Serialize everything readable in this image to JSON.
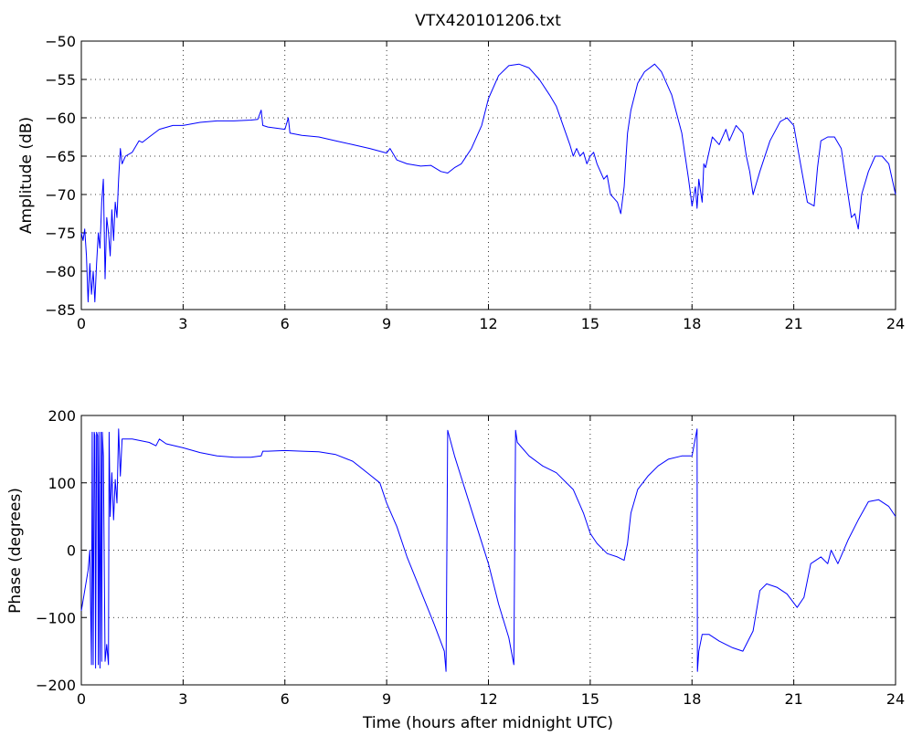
{
  "figure": {
    "title": "VTX420101206.txt",
    "colors": {
      "trace": "#0000ff",
      "axes": "#000000",
      "background": "#ffffff"
    }
  },
  "chart_data": [
    {
      "type": "line",
      "title": "VTX420101206.txt",
      "xlabel": "",
      "ylabel": "Amplitude (dB)",
      "xlim": [
        0,
        24
      ],
      "ylim": [
        -85,
        -50
      ],
      "xticks": [
        "0",
        "3",
        "6",
        "9",
        "12",
        "15",
        "18",
        "21",
        "24"
      ],
      "yticks": [
        "-50",
        "-55",
        "-60",
        "-65",
        "-70",
        "-75",
        "-80",
        "-85"
      ],
      "grid": true,
      "series": [
        {
          "x": [
            0,
            0.05,
            0.1,
            0.15,
            0.2,
            0.25,
            0.3,
            0.35,
            0.4,
            0.45,
            0.5,
            0.55,
            0.6,
            0.65,
            0.7,
            0.75,
            0.8,
            0.85,
            0.9,
            0.95,
            1.0,
            1.05,
            1.1,
            1.15,
            1.2,
            1.3,
            1.5,
            1.7,
            1.8,
            2.0,
            2.3,
            2.7,
            3.0,
            3.5,
            4.0,
            4.5,
            5.0,
            5.2,
            5.3,
            5.35,
            5.5,
            6.0,
            6.1,
            6.15,
            6.5,
            7.0,
            7.5,
            8.0,
            8.5,
            9.0,
            9.1,
            9.3,
            9.6,
            10.0,
            10.3,
            10.6,
            10.8,
            11.0,
            11.2,
            11.5,
            11.8,
            12.0,
            12.3,
            12.6,
            12.9,
            13.2,
            13.5,
            13.8,
            14.0,
            14.2,
            14.4,
            14.5,
            14.6,
            14.7,
            14.8,
            14.9,
            15.0,
            15.1,
            15.2,
            15.3,
            15.4,
            15.5,
            15.6,
            15.7,
            15.8,
            15.9,
            16.0,
            16.1,
            16.2,
            16.4,
            16.6,
            16.9,
            17.1,
            17.4,
            17.7,
            17.9,
            18.0,
            18.1,
            18.15,
            18.2,
            18.3,
            18.35,
            18.4,
            18.6,
            18.8,
            19.0,
            19.1,
            19.3,
            19.5,
            19.6,
            19.7,
            19.8,
            20.0,
            20.3,
            20.6,
            20.8,
            21.0,
            21.2,
            21.4,
            21.6,
            21.7,
            21.8,
            22.0,
            22.2,
            22.4,
            22.6,
            22.7,
            22.8,
            22.9,
            23.0,
            23.2,
            23.4,
            23.6,
            23.8,
            24.0
          ],
          "y": [
            -75,
            -76,
            -74.5,
            -78,
            -84,
            -79,
            -83,
            -80,
            -84,
            -79,
            -75,
            -77,
            -71,
            -68,
            -81,
            -73,
            -75,
            -78,
            -72,
            -76,
            -71,
            -73,
            -68,
            -64,
            -66,
            -65,
            -64.5,
            -63,
            -63.2,
            -62.5,
            -61.5,
            -61,
            -61,
            -60.6,
            -60.4,
            -60.4,
            -60.3,
            -60.2,
            -59,
            -61,
            -61.2,
            -61.5,
            -60,
            -62,
            -62.3,
            -62.5,
            -63,
            -63.5,
            -64,
            -64.6,
            -64,
            -65.5,
            -66,
            -66.3,
            -66.2,
            -67,
            -67.2,
            -66.5,
            -66,
            -64,
            -61,
            -57.5,
            -54.5,
            -53.2,
            -53,
            -53.5,
            -55,
            -57,
            -58.5,
            -61,
            -63.5,
            -65,
            -64,
            -65,
            -64.5,
            -66,
            -65,
            -64.5,
            -66,
            -67,
            -68,
            -67.5,
            -70,
            -70.5,
            -71,
            -72.5,
            -69,
            -62,
            -59,
            -55.5,
            -54,
            -53,
            -54,
            -57,
            -62,
            -68,
            -71.5,
            -69,
            -71.8,
            -68,
            -71,
            -66,
            -66.5,
            -62.5,
            -63.5,
            -61.5,
            -63,
            -61,
            -62,
            -65,
            -67,
            -70,
            -67,
            -63,
            -60.5,
            -60,
            -61,
            -66,
            -71,
            -71.5,
            -66.5,
            -63,
            -62.5,
            -62.5,
            -64,
            -70,
            -73,
            -72.5,
            -74.5,
            -70,
            -67,
            -65,
            -65,
            -66,
            -70
          ]
        }
      ]
    },
    {
      "type": "line",
      "title": "",
      "xlabel": "Time (hours after midnight UTC)",
      "ylabel": "Phase (degrees)",
      "xlim": [
        0,
        24
      ],
      "ylim": [
        -200,
        200
      ],
      "xticks": [
        "0",
        "3",
        "6",
        "9",
        "12",
        "15",
        "18",
        "21",
        "24"
      ],
      "yticks": [
        "200",
        "100",
        "0",
        "-100",
        "-200"
      ],
      "grid": true,
      "series": [
        {
          "x": [
            0,
            0.1,
            0.2,
            0.25,
            0.3,
            0.32,
            0.35,
            0.38,
            0.4,
            0.42,
            0.45,
            0.48,
            0.5,
            0.52,
            0.55,
            0.58,
            0.6,
            0.62,
            0.65,
            0.7,
            0.75,
            0.8,
            0.82,
            0.85,
            0.9,
            0.95,
            1.0,
            1.05,
            1.1,
            1.15,
            1.2,
            1.5,
            2.0,
            2.2,
            2.3,
            2.5,
            3.0,
            3.5,
            4.0,
            4.5,
            5.0,
            5.3,
            5.35,
            5.5,
            6.0,
            6.5,
            7.0,
            7.5,
            8.0,
            8.5,
            8.8,
            9.0,
            9.3,
            9.6,
            10.0,
            10.4,
            10.7,
            10.75,
            10.8,
            11.0,
            11.5,
            12.0,
            12.3,
            12.6,
            12.75,
            12.8,
            12.85,
            13.2,
            13.6,
            14.0,
            14.5,
            14.8,
            15.0,
            15.2,
            15.5,
            15.8,
            16.0,
            16.1,
            16.2,
            16.4,
            16.7,
            17.0,
            17.3,
            17.7,
            18.0,
            18.15,
            18.16,
            18.2,
            18.3,
            18.5,
            18.8,
            19.2,
            19.5,
            19.8,
            20.0,
            20.2,
            20.5,
            20.8,
            21.1,
            21.3,
            21.5,
            21.8,
            22.0,
            22.1,
            22.3,
            22.6,
            22.9,
            23.2,
            23.5,
            23.8,
            24.0
          ],
          "y": [
            -90,
            -60,
            -30,
            0,
            -170,
            175,
            -170,
            175,
            170,
            -175,
            175,
            170,
            -170,
            175,
            -175,
            175,
            -165,
            175,
            140,
            -165,
            -140,
            -170,
            175,
            50,
            115,
            45,
            105,
            70,
            180,
            110,
            165,
            165,
            160,
            155,
            165,
            158,
            152,
            145,
            140,
            138,
            138,
            140,
            147,
            147,
            148,
            147,
            146,
            142,
            132,
            112,
            100,
            70,
            35,
            -10,
            -60,
            -110,
            -150,
            -180,
            178,
            140,
            60,
            -20,
            -80,
            -130,
            -170,
            178,
            160,
            140,
            125,
            115,
            90,
            55,
            25,
            10,
            -5,
            -10,
            -15,
            10,
            55,
            90,
            110,
            125,
            135,
            140,
            140,
            180,
            -180,
            -150,
            -125,
            -125,
            -135,
            -145,
            -150,
            -120,
            -60,
            -50,
            -55,
            -65,
            -85,
            -70,
            -20,
            -10,
            -20,
            0,
            -20,
            15,
            45,
            72,
            75,
            65,
            50
          ]
        }
      ]
    }
  ]
}
